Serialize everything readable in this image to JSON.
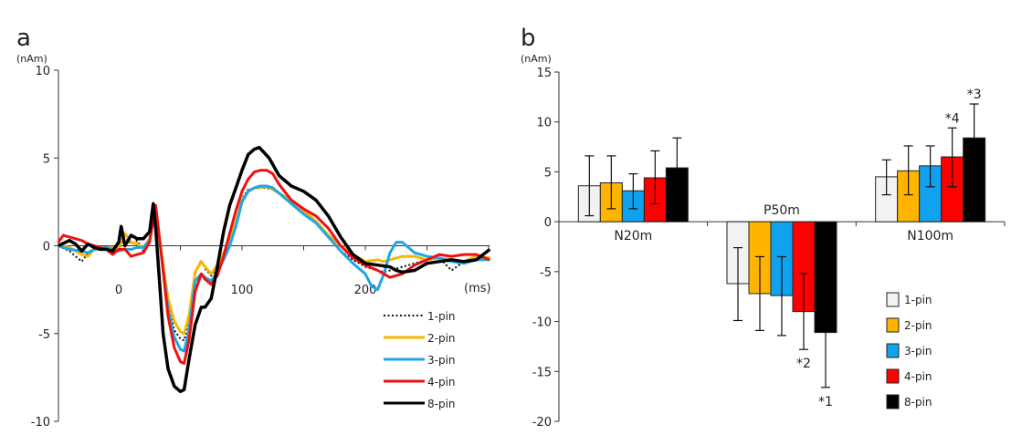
{
  "chart_data": [
    {
      "type": "line",
      "panel_label": "a",
      "title": "",
      "xlabel": "(ms)",
      "ylabel": "(nAm)",
      "xlim": [
        -49,
        301
      ],
      "ylim": [
        -10,
        10
      ],
      "xticks": [
        0,
        100,
        200
      ],
      "yticks": [
        10,
        5,
        0,
        -5,
        -10
      ],
      "grid": false,
      "legend_position": "bottom-right",
      "series": [
        {
          "name": "1-pin",
          "color": "#111111",
          "style": "dotted",
          "x": [
            -49,
            -40,
            -30,
            -25,
            -20,
            -10,
            0,
            5,
            10,
            15,
            20,
            25,
            30,
            35,
            40,
            45,
            50,
            53,
            57,
            62,
            67,
            70,
            75,
            80,
            85,
            90,
            95,
            100,
            105,
            110,
            115,
            120,
            125,
            130,
            140,
            150,
            160,
            170,
            180,
            190,
            200,
            210,
            215,
            220,
            230,
            240,
            250,
            260,
            270,
            280,
            290,
            301
          ],
          "y": [
            0,
            -0.3,
            -0.9,
            -0.4,
            -0.2,
            -0.1,
            -0.2,
            0.6,
            0.1,
            0.3,
            -0.3,
            0.5,
            2.2,
            -0.5,
            -3.3,
            -4.8,
            -5.3,
            -5.4,
            -4.2,
            -1.6,
            -0.8,
            -1.3,
            -1.7,
            -1.2,
            -0.4,
            0.2,
            1.4,
            2.7,
            3.2,
            3.3,
            3.3,
            3.3,
            3.2,
            3.0,
            2.5,
            1.8,
            1.4,
            0.5,
            -0.3,
            -0.8,
            -1.2,
            -1.4,
            -1.5,
            -1.4,
            -1.2,
            -1.0,
            -0.8,
            -0.7,
            -1.4,
            -0.9,
            -0.7,
            -0.7
          ]
        },
        {
          "name": "2-pin",
          "color": "#f5b800",
          "style": "solid",
          "x": [
            -49,
            -40,
            -30,
            -25,
            -20,
            -10,
            0,
            5,
            10,
            15,
            20,
            25,
            30,
            35,
            40,
            45,
            50,
            53,
            57,
            62,
            67,
            70,
            75,
            80,
            85,
            90,
            95,
            100,
            105,
            110,
            115,
            120,
            125,
            130,
            140,
            150,
            160,
            170,
            180,
            190,
            200,
            210,
            215,
            220,
            230,
            240,
            250,
            260,
            270,
            280,
            290,
            301
          ],
          "y": [
            0,
            -0.1,
            -0.5,
            -0.6,
            -0.2,
            -0.1,
            -0.1,
            0.7,
            0.2,
            0.1,
            -0.1,
            0.4,
            2.1,
            -0.6,
            -3.0,
            -4.3,
            -4.9,
            -5.0,
            -4.0,
            -1.5,
            -0.9,
            -1.2,
            -1.6,
            -1.1,
            -0.4,
            0.3,
            1.3,
            2.6,
            3.1,
            3.3,
            3.3,
            3.4,
            3.2,
            3.0,
            2.6,
            2.0,
            1.4,
            0.6,
            0.0,
            -0.5,
            -0.9,
            -0.8,
            -0.9,
            -0.8,
            -0.6,
            -0.6,
            -0.8,
            -0.7,
            -0.8,
            -0.9,
            -0.6,
            -0.7
          ]
        },
        {
          "name": "3-pin",
          "color": "#1ea7e8",
          "style": "solid",
          "x": [
            -49,
            -40,
            -30,
            -25,
            -20,
            -10,
            0,
            5,
            10,
            15,
            20,
            25,
            30,
            35,
            40,
            45,
            50,
            53,
            57,
            62,
            67,
            70,
            75,
            80,
            85,
            90,
            95,
            100,
            105,
            110,
            115,
            120,
            125,
            130,
            140,
            150,
            160,
            170,
            180,
            190,
            200,
            205,
            210,
            215,
            220,
            225,
            230,
            240,
            250,
            260,
            270,
            280,
            290,
            301
          ],
          "y": [
            0,
            -0.2,
            -0.3,
            -0.4,
            -0.2,
            -0.1,
            -0.3,
            -0.2,
            -0.2,
            -0.1,
            -0.1,
            0.3,
            2.2,
            -0.8,
            -3.6,
            -5.2,
            -5.9,
            -6.0,
            -4.8,
            -2.0,
            -1.6,
            -1.8,
            -2.0,
            -1.5,
            -0.8,
            0.0,
            1.1,
            2.5,
            3.1,
            3.3,
            3.4,
            3.4,
            3.3,
            3.0,
            2.4,
            1.8,
            1.3,
            0.5,
            -0.3,
            -1.0,
            -1.6,
            -2.3,
            -2.5,
            -1.6,
            -0.4,
            0.2,
            0.2,
            -0.4,
            -0.6,
            -0.7,
            -0.9,
            -1.0,
            -0.8,
            -0.8
          ]
        },
        {
          "name": "4-pin",
          "color": "#ee1111",
          "style": "solid",
          "x": [
            -49,
            -45,
            -40,
            -30,
            -25,
            -20,
            -10,
            -5,
            0,
            5,
            10,
            15,
            20,
            25,
            30,
            35,
            40,
            45,
            50,
            53,
            57,
            62,
            67,
            70,
            75,
            80,
            85,
            90,
            95,
            100,
            105,
            110,
            115,
            120,
            125,
            130,
            140,
            150,
            160,
            170,
            180,
            190,
            200,
            210,
            215,
            220,
            230,
            240,
            250,
            260,
            270,
            280,
            290,
            301
          ],
          "y": [
            0.2,
            0.6,
            0.5,
            0.3,
            0.1,
            0.0,
            -0.2,
            -0.5,
            -0.2,
            -0.2,
            -0.6,
            -0.5,
            -0.4,
            0.2,
            2.3,
            -0.8,
            -4.0,
            -5.8,
            -6.6,
            -6.7,
            -5.4,
            -2.6,
            -1.6,
            -1.9,
            -2.2,
            -1.7,
            -0.6,
            0.7,
            2.0,
            3.1,
            3.8,
            4.2,
            4.3,
            4.3,
            4.1,
            3.5,
            2.6,
            2.1,
            1.7,
            1.0,
            0.0,
            -0.7,
            -1.1,
            -1.4,
            -1.6,
            -1.8,
            -1.6,
            -1.1,
            -0.8,
            -0.5,
            -0.6,
            -0.5,
            -0.5,
            -0.8
          ]
        },
        {
          "name": "8-pin",
          "color": "#000000",
          "style": "solid",
          "x": [
            -49,
            -40,
            -35,
            -30,
            -25,
            -20,
            -15,
            -10,
            -5,
            0,
            2,
            5,
            10,
            15,
            20,
            25,
            28,
            30,
            33,
            36,
            40,
            45,
            50,
            53,
            57,
            62,
            67,
            70,
            75,
            80,
            85,
            90,
            95,
            100,
            105,
            110,
            114,
            118,
            122,
            126,
            130,
            140,
            150,
            160,
            170,
            180,
            190,
            200,
            210,
            220,
            225,
            230,
            240,
            250,
            260,
            270,
            280,
            290,
            301
          ],
          "y": [
            0,
            0.3,
            0.1,
            -0.3,
            0.1,
            -0.1,
            -0.2,
            -0.2,
            -0.3,
            0.2,
            1.1,
            0.0,
            0.6,
            0.4,
            0.4,
            0.8,
            2.4,
            1.0,
            -2.0,
            -5.0,
            -7.0,
            -8.0,
            -8.3,
            -8.2,
            -6.5,
            -4.5,
            -3.5,
            -3.5,
            -3.0,
            -1.2,
            0.8,
            2.3,
            3.3,
            4.3,
            5.2,
            5.5,
            5.6,
            5.3,
            5.0,
            4.5,
            4.0,
            3.4,
            3.1,
            2.6,
            1.7,
            0.5,
            -0.5,
            -1.0,
            -1.1,
            -1.2,
            -1.4,
            -1.5,
            -1.4,
            -1.0,
            -0.9,
            -0.8,
            -0.9,
            -0.8,
            -0.2
          ]
        }
      ]
    },
    {
      "type": "bar",
      "panel_label": "b",
      "title": "",
      "xlabel": "",
      "ylabel": "(nAm)",
      "ylim": [
        -20,
        15
      ],
      "yticks": [
        15,
        10,
        5,
        0,
        -5,
        -10,
        -15,
        -20
      ],
      "grid": false,
      "legend_position": "bottom-right",
      "categories": [
        "N20m",
        "P50m",
        "N100m"
      ],
      "series": [
        {
          "name": "1-pin",
          "color": "#f2f2f2",
          "values": [
            3.6,
            -6.2,
            4.5
          ],
          "error": [
            [
              0.6,
              6.6
            ],
            [
              -9.9,
              -2.6
            ],
            [
              2.7,
              6.2
            ]
          ]
        },
        {
          "name": "2-pin",
          "color": "#ffb400",
          "values": [
            3.9,
            -7.2,
            5.1
          ],
          "error": [
            [
              1.3,
              6.6
            ],
            [
              -10.9,
              -3.5
            ],
            [
              2.7,
              7.6
            ]
          ]
        },
        {
          "name": "3-pin",
          "color": "#11a2ef",
          "values": [
            3.1,
            -7.4,
            5.6
          ],
          "error": [
            [
              1.3,
              4.8
            ],
            [
              -11.4,
              -3.5
            ],
            [
              3.5,
              7.6
            ]
          ]
        },
        {
          "name": "4-pin",
          "color": "#ff0000",
          "values": [
            4.4,
            -9.0,
            6.5
          ],
          "error": [
            [
              1.8,
              7.1
            ],
            [
              -12.8,
              -5.2
            ],
            [
              3.5,
              9.4
            ]
          ]
        },
        {
          "name": "8-pin",
          "color": "#000000",
          "values": [
            5.4,
            -11.1,
            8.4
          ],
          "error": [
            [
              null,
              8.4
            ],
            [
              -16.6,
              null
            ],
            [
              null,
              11.8
            ]
          ]
        }
      ],
      "annotations": [
        {
          "text": "*1",
          "category": "P50m",
          "series": "8-pin"
        },
        {
          "text": "*2",
          "category": "P50m",
          "series": "4-pin"
        },
        {
          "text": "*3",
          "category": "N100m",
          "series": "8-pin"
        },
        {
          "text": "*4",
          "category": "N100m",
          "series": "4-pin"
        }
      ]
    }
  ]
}
